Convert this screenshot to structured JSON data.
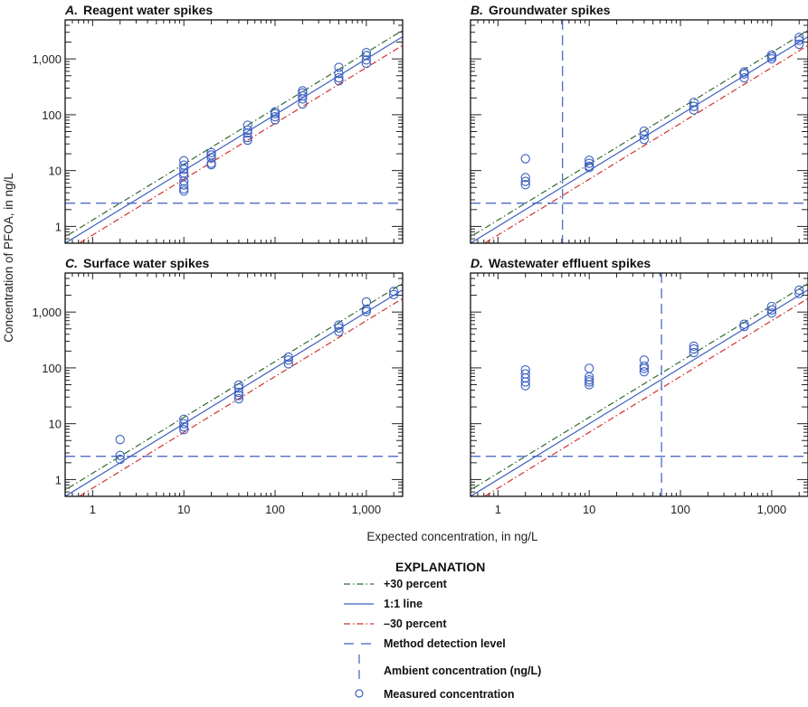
{
  "chart_data": {
    "type": "scatter",
    "xlabel": "Expected concentration, in ng/L",
    "ylabel": "Concentration of PFOA, in ng/L",
    "x_scale": "log",
    "y_scale": "log",
    "xlim": [
      0.5,
      2500
    ],
    "ylim": [
      0.5,
      5000
    ],
    "x_tick_labels": [
      {
        "value": 1,
        "label": "1"
      },
      {
        "value": 10,
        "label": "10"
      },
      {
        "value": 100,
        "label": "100"
      },
      {
        "value": 1000,
        "label": "1,000"
      }
    ],
    "y_tick_labels": [
      {
        "value": 1,
        "label": "1"
      },
      {
        "value": 10,
        "label": "10"
      },
      {
        "value": 100,
        "label": "100"
      },
      {
        "value": 1000,
        "label": "1,000"
      }
    ],
    "grid": false,
    "method_detection_level": 2.6,
    "colors": {
      "plus30": "#2e6b30",
      "one_to_one": "#3b5fc0",
      "minus30": "#d2312b",
      "mdl": "#3b5fc0",
      "ambient": "#3b5fc0",
      "points": "#3b5fc0"
    },
    "panels": [
      {
        "letter": "A.",
        "title": "Reagent water spikes",
        "ambient": null,
        "points": [
          {
            "x": 10,
            "y": [
              15,
              12.5,
              10.5,
              9,
              8,
              6.5,
              5.5,
              4.7,
              4.3
            ]
          },
          {
            "x": 20,
            "y": [
              21,
              19,
              17,
              13.5,
              12.7
            ]
          },
          {
            "x": 50,
            "y": [
              65,
              53,
              47,
              39,
              35
            ]
          },
          {
            "x": 100,
            "y": [
              113,
              104,
              92,
              81
            ]
          },
          {
            "x": 200,
            "y": [
              269,
              246,
              218,
              192,
              156
            ]
          },
          {
            "x": 500,
            "y": [
              705,
              550,
              458,
              405
            ]
          },
          {
            "x": 1000,
            "y": [
              1300,
              1150,
              960,
              830
            ]
          }
        ]
      },
      {
        "letter": "B.",
        "title": "Groundwater spikes",
        "ambient": 5.1,
        "points": [
          {
            "x": 2,
            "y": [
              16.3,
              7.5,
              6.4,
              5.6
            ]
          },
          {
            "x": 10,
            "y": [
              15.3,
              13.5,
              12,
              11.3
            ]
          },
          {
            "x": 40,
            "y": [
              51,
              43,
              36
            ]
          },
          {
            "x": 140,
            "y": [
              166,
              141,
              122
            ]
          },
          {
            "x": 500,
            "y": [
              585,
              540,
              458
            ]
          },
          {
            "x": 1000,
            "y": [
              1180,
              1090,
              1000
            ]
          },
          {
            "x": 2000,
            "y": [
              2420,
              2150,
              1830
            ]
          }
        ]
      },
      {
        "letter": "C.",
        "title": "Surface water spikes",
        "ambient": null,
        "points": [
          {
            "x": 2,
            "y": [
              5.2,
              2.7,
              2.3
            ]
          },
          {
            "x": 10,
            "y": [
              12,
              10,
              8.8,
              7.8
            ]
          },
          {
            "x": 40,
            "y": [
              49.5,
              43.6,
              36.3,
              32,
              28
            ]
          },
          {
            "x": 140,
            "y": [
              156,
              138,
              118
            ]
          },
          {
            "x": 500,
            "y": [
              585,
              520,
              445
            ]
          },
          {
            "x": 1000,
            "y": [
              1520,
              1120,
              1020
            ]
          },
          {
            "x": 2000,
            "y": [
              2350,
              2050
            ]
          }
        ]
      },
      {
        "letter": "D.",
        "title": "Wastewater effluent spikes",
        "ambient": 62,
        "points": [
          {
            "x": 2,
            "y": [
              92,
              78,
              66,
              56,
              48
            ]
          },
          {
            "x": 10,
            "y": [
              98,
              69,
              61,
              56,
              50
            ]
          },
          {
            "x": 40,
            "y": [
              138,
              108,
              98,
              85
            ]
          },
          {
            "x": 140,
            "y": [
              245,
              218,
              188
            ]
          },
          {
            "x": 500,
            "y": [
              605,
              550
            ]
          },
          {
            "x": 1000,
            "y": [
              1260,
              1090,
              960
            ]
          },
          {
            "x": 2000,
            "y": [
              2470,
              2150
            ]
          }
        ]
      }
    ],
    "legend": {
      "title": "EXPLANATION",
      "placement": "bottom-center",
      "items": [
        {
          "key": "plus30",
          "label": "+30 percent"
        },
        {
          "key": "one_to_one",
          "label": "1:1 line"
        },
        {
          "key": "minus30",
          "label": "–30 percent"
        },
        {
          "key": "mdl",
          "label": "Method detection level"
        },
        {
          "key": "ambient",
          "label": "Ambient concentration (ng/L)"
        },
        {
          "key": "points",
          "label": "Measured concentration"
        }
      ]
    }
  }
}
